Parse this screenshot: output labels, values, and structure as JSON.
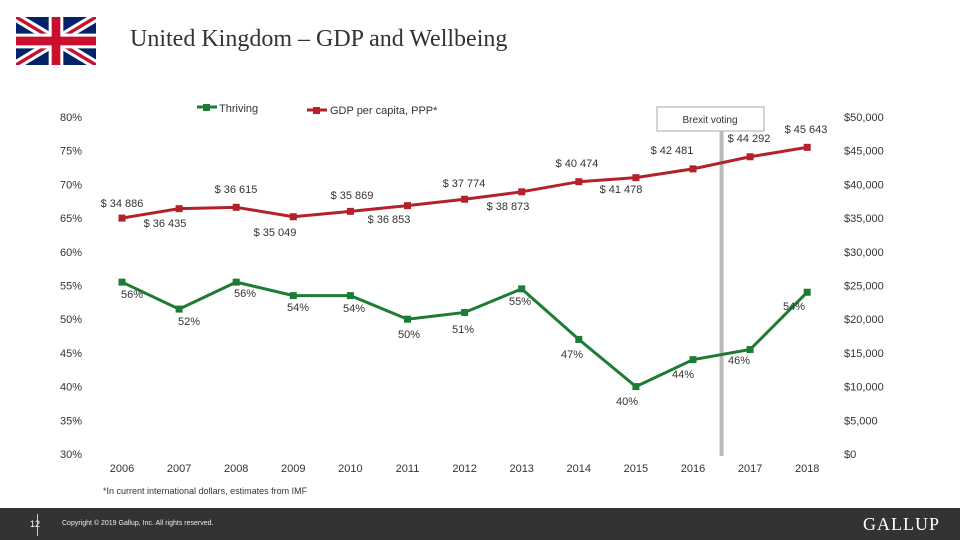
{
  "header": {
    "title": "United Kingdom – GDP and Wellbeing"
  },
  "footnote": "*In current international dollars, estimates from IMF",
  "footer": {
    "page_number": "12",
    "copyright": "Copyright © 2019 Gallup, Inc. All rights reserved.",
    "brand": "GALLUP"
  },
  "colors": {
    "thriving": "#1e7b34",
    "gdp": "#b3212a",
    "brexit_line": "#bbbbbb",
    "footer": "#333333"
  },
  "chart_data": {
    "type": "line",
    "x": [
      "2006",
      "2007",
      "2008",
      "2009",
      "2010",
      "2011",
      "2012",
      "2013",
      "2014",
      "2015",
      "2016",
      "2017",
      "2018"
    ],
    "left_axis": {
      "ticks": [
        "80%",
        "75%",
        "70%",
        "65%",
        "60%",
        "55%",
        "50%",
        "45%",
        "40%",
        "35%",
        "30%"
      ],
      "range": [
        30,
        80
      ]
    },
    "right_axis": {
      "ticks": [
        "$50,000",
        "$45,000",
        "$40,000",
        "$35,000",
        "$30,000",
        "$25,000",
        "$20,000",
        "$15,000",
        "$10,000",
        "$5,000",
        "$0"
      ],
      "range": [
        0,
        50000
      ]
    },
    "series": [
      {
        "name": "Thriving",
        "axis": "left",
        "values": [
          55.5,
          51.5,
          55.5,
          53.5,
          53.5,
          50,
          51,
          54.5,
          47,
          40,
          44,
          45.5,
          54
        ],
        "labels": [
          "56%",
          "52%",
          "56%",
          "54%",
          "54%",
          "50%",
          "51%",
          "55%",
          "47%",
          "40%",
          "44%",
          "46%",
          "54%"
        ]
      },
      {
        "name": "GDP per capita, PPP*",
        "axis": "right",
        "values": [
          35000,
          36400,
          36600,
          35200,
          36000,
          36850,
          37800,
          38900,
          40400,
          41000,
          42300,
          44100,
          45500
        ],
        "labels": [
          "$ 34 886",
          "$ 36 435",
          "$ 36 615",
          "$ 35 049",
          "$ 35 869",
          "$ 36 853",
          "$ 37 774",
          "$ 38 873",
          "$ 40 474",
          "$ 41 478",
          "$ 42 481",
          "$ 44 292",
          "$ 45 643"
        ]
      }
    ],
    "annotation": {
      "text": "Brexit voting",
      "x": "2016.5"
    }
  }
}
